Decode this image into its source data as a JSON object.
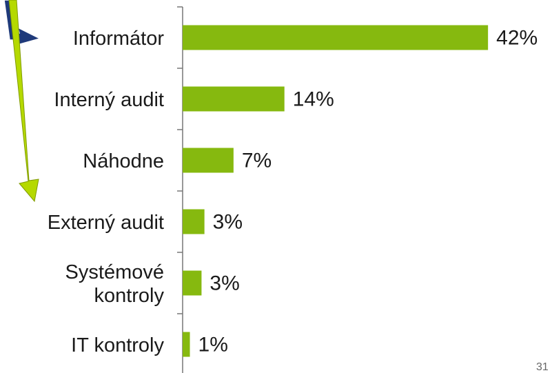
{
  "chart_data": {
    "type": "hbar",
    "categories": [
      "Informátor",
      "Interný audit",
      "Náhodne",
      "Externý audit",
      "Systémové\nkontroly",
      "IT kontroly"
    ],
    "values": [
      42,
      14,
      7,
      3,
      2.6,
      1
    ],
    "value_labels": [
      "42%",
      "14%",
      "7%",
      "3%",
      "3%",
      "1%"
    ],
    "color": "#86b90f",
    "xlim": [
      0,
      50.8
    ]
  },
  "page_number": "31"
}
